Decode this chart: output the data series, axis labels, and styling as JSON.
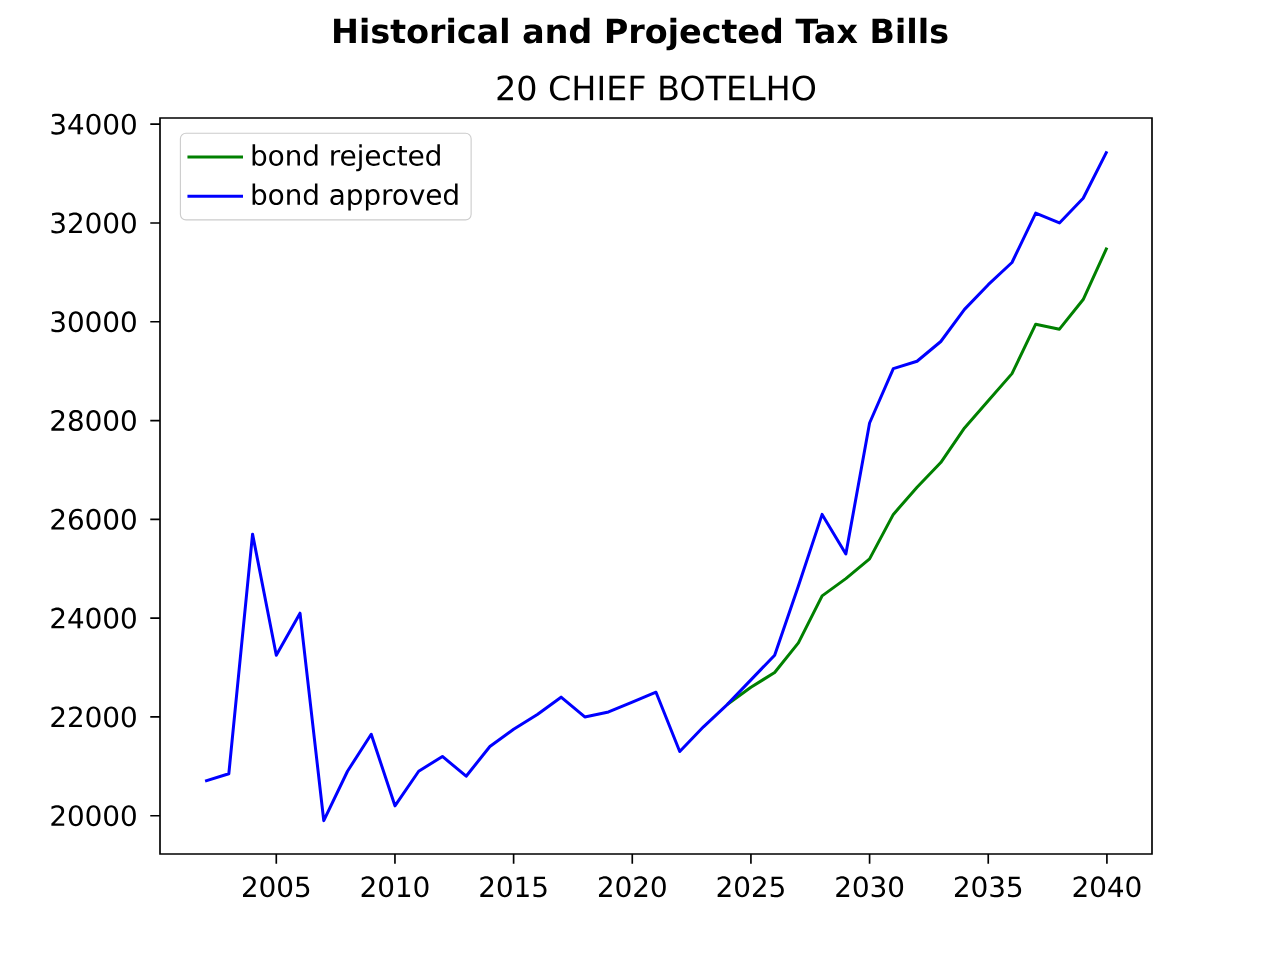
{
  "chart_data": {
    "type": "line",
    "title": "Historical and Projected Tax Bills",
    "subtitle": "20 CHIEF BOTELHO",
    "x": [
      2002,
      2003,
      2004,
      2005,
      2006,
      2007,
      2008,
      2009,
      2010,
      2011,
      2012,
      2013,
      2014,
      2015,
      2016,
      2017,
      2018,
      2019,
      2020,
      2021,
      2022,
      2023,
      2024,
      2025,
      2026,
      2027,
      2028,
      2029,
      2030,
      2031,
      2032,
      2033,
      2034,
      2035,
      2036,
      2037,
      2038,
      2039,
      2040
    ],
    "series": [
      {
        "name": "bond rejected",
        "color": "#008000",
        "values": [
          null,
          null,
          null,
          null,
          null,
          null,
          null,
          null,
          null,
          null,
          null,
          null,
          null,
          null,
          null,
          null,
          null,
          null,
          null,
          null,
          null,
          null,
          22250,
          22600,
          22900,
          23500,
          24450,
          24800,
          25200,
          26100,
          26650,
          27150,
          27850,
          28400,
          28950,
          29950,
          29850,
          30450,
          31500
        ]
      },
      {
        "name": "bond approved",
        "color": "#0000ff",
        "values": [
          20700,
          20850,
          25700,
          23250,
          24100,
          19900,
          20900,
          21650,
          20200,
          20900,
          21200,
          20800,
          21400,
          21750,
          22050,
          22400,
          22000,
          22100,
          22300,
          22500,
          21300,
          21800,
          22250,
          22750,
          23250,
          24650,
          26100,
          25300,
          27950,
          29050,
          29200,
          29600,
          30250,
          30750,
          31200,
          32200,
          32000,
          32500,
          33450
        ]
      }
    ],
    "xlim": [
      2000.1,
      2041.9
    ],
    "ylim": [
      19225,
      34125
    ],
    "xticks": [
      2005,
      2010,
      2015,
      2020,
      2025,
      2030,
      2035,
      2040
    ],
    "yticks": [
      20000,
      22000,
      24000,
      26000,
      28000,
      30000,
      32000,
      34000
    ],
    "legend": "top left"
  }
}
